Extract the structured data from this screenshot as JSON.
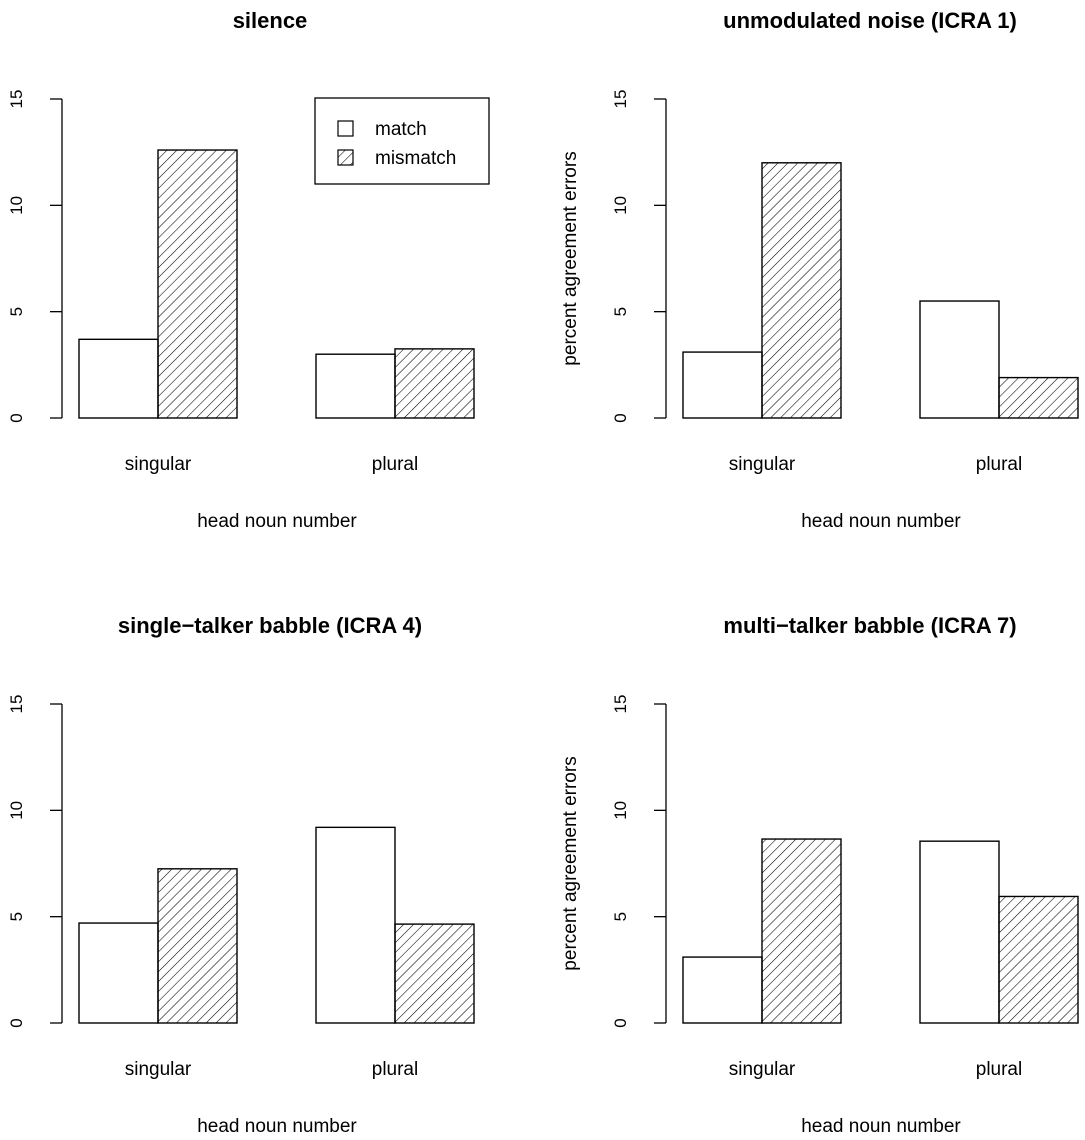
{
  "chart_data": [
    {
      "type": "bar",
      "title": "silence",
      "xlabel": "head noun number",
      "ylabel": "",
      "categories": [
        "singular",
        "plural"
      ],
      "series": [
        {
          "name": "match",
          "values": [
            3.7,
            3.0
          ]
        },
        {
          "name": "mismatch",
          "values": [
            12.6,
            3.25
          ]
        }
      ],
      "ylim": [
        0,
        15
      ],
      "yticks": [
        "0",
        "5",
        "10",
        "15"
      ],
      "legend": {
        "placement": "top-right",
        "entries": [
          "match",
          "mismatch"
        ]
      }
    },
    {
      "type": "bar",
      "title": "unmodulated noise (ICRA 1)",
      "xlabel": "head noun number",
      "ylabel": "percent agreement errors",
      "categories": [
        "singular",
        "plural"
      ],
      "series": [
        {
          "name": "match",
          "values": [
            3.1,
            5.5
          ]
        },
        {
          "name": "mismatch",
          "values": [
            12.0,
            1.9
          ]
        }
      ],
      "ylim": [
        0,
        15
      ],
      "yticks": [
        "0",
        "5",
        "10",
        "15"
      ]
    },
    {
      "type": "bar",
      "title": "single−talker babble (ICRA 4)",
      "xlabel": "head noun number",
      "ylabel": "",
      "categories": [
        "singular",
        "plural"
      ],
      "series": [
        {
          "name": "match",
          "values": [
            4.7,
            9.2
          ]
        },
        {
          "name": "mismatch",
          "values": [
            7.25,
            4.65
          ]
        }
      ],
      "ylim": [
        0,
        15
      ],
      "yticks": [
        "0",
        "5",
        "10",
        "15"
      ]
    },
    {
      "type": "bar",
      "title": "multi−talker babble (ICRA 7)",
      "xlabel": "head noun number",
      "ylabel": "percent agreement errors",
      "categories": [
        "singular",
        "plural"
      ],
      "series": [
        {
          "name": "match",
          "values": [
            3.1,
            8.55
          ]
        },
        {
          "name": "mismatch",
          "values": [
            8.65,
            5.95
          ]
        }
      ],
      "ylim": [
        0,
        15
      ],
      "yticks": [
        "0",
        "5",
        "10",
        "15"
      ]
    }
  ]
}
